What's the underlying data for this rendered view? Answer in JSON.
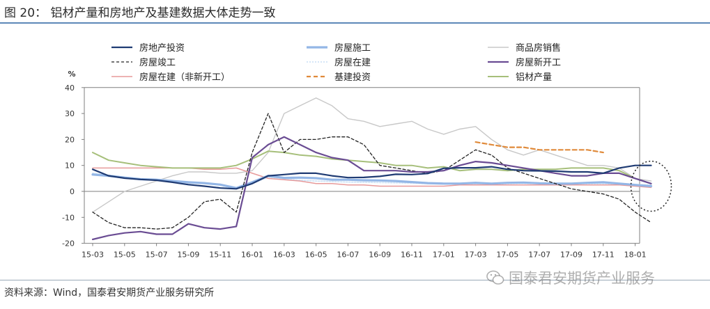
{
  "header": {
    "title": "图 20：  铝材产量和房地产及基建数据大体走势一致"
  },
  "footer": {
    "source": "资料来源：Wind，国泰君安期货产业服务研究所"
  },
  "watermark": {
    "text": "国泰君安期货产业服务",
    "icon": "wechat-icon"
  },
  "chart_data": {
    "type": "line",
    "ylabel": "%",
    "ylim": [
      -20,
      40
    ],
    "yticks": [
      -20,
      -10,
      0,
      10,
      20,
      30,
      40
    ],
    "x_tick_labels": [
      "15-03",
      "15-05",
      "15-07",
      "15-09",
      "15-11",
      "16-01",
      "16-03",
      "16-05",
      "16-07",
      "16-09",
      "16-11",
      "17-01",
      "17-03",
      "17-05",
      "17-07",
      "17-09",
      "17-11",
      "18-01"
    ],
    "x_months": [
      "15-03",
      "15-04",
      "15-05",
      "15-06",
      "15-07",
      "15-08",
      "15-09",
      "15-10",
      "15-11",
      "15-12",
      "16-01",
      "16-02",
      "16-03",
      "16-04",
      "16-05",
      "16-06",
      "16-07",
      "16-08",
      "16-09",
      "16-10",
      "16-11",
      "16-12",
      "17-01",
      "17-02",
      "17-03",
      "17-04",
      "17-05",
      "17-06",
      "17-07",
      "17-08",
      "17-09",
      "17-10",
      "17-11",
      "17-12",
      "18-01",
      "18-02"
    ],
    "grid": false,
    "legend_position": "top",
    "highlight": {
      "shape": "dashed-ellipse",
      "x": "18-02",
      "y": 2
    },
    "series": [
      {
        "name": "房地产投资",
        "color": "#1f3b73",
        "dash": "solid",
        "width": 2.2,
        "values": [
          8.5,
          6,
          5.1,
          4.6,
          4.3,
          3.5,
          2.6,
          2,
          1.3,
          1,
          3,
          6,
          6.5,
          7,
          7,
          6,
          5.3,
          5.4,
          5.8,
          6.6,
          6.5,
          6.9,
          8.9,
          9.1,
          9.1,
          9.5,
          8.5,
          8,
          7.9,
          7.8,
          7.5,
          7.5,
          7,
          9,
          10,
          10
        ]
      },
      {
        "name": "房屋施工",
        "color": "#93b6e6",
        "dash": "solid",
        "width": 3.2,
        "values": [
          6.5,
          6,
          5.3,
          4.7,
          4.5,
          4,
          3.5,
          3.2,
          2.6,
          1.3,
          3.5,
          6,
          5.2,
          5.3,
          5.1,
          4.5,
          4.5,
          4.3,
          4.2,
          4,
          3.6,
          3.2,
          3,
          3,
          3.3,
          3,
          3.3,
          3.4,
          3.1,
          3,
          3,
          3.3,
          3.5,
          3,
          2.5,
          2
        ]
      },
      {
        "name": "商品房销售",
        "color": "#c8c8c8",
        "dash": "solid",
        "width": 1.4,
        "values": [
          -8,
          -4,
          0,
          2,
          4,
          6,
          7.5,
          7.5,
          7,
          7,
          8,
          15,
          30,
          33,
          36,
          33,
          28,
          27,
          25,
          26,
          27,
          24,
          22,
          24,
          25,
          20,
          16,
          14,
          16,
          14,
          12,
          10,
          10,
          9,
          5,
          4
        ]
      },
      {
        "name": "房屋竣工",
        "color": "#222222",
        "dash": "4 3",
        "width": 1.3,
        "values": [
          -8,
          -12,
          -14,
          -14,
          -14.5,
          -14,
          -10,
          -4,
          -3,
          -8,
          15,
          30,
          15,
          20,
          20,
          21,
          21,
          18,
          10,
          9,
          8,
          7,
          8,
          12,
          16,
          14,
          9,
          7,
          5,
          3,
          1,
          0,
          -1,
          -3,
          -8,
          -12
        ]
      },
      {
        "name": "房屋在建",
        "color": "#cfe3f6",
        "dash": "2 2",
        "width": 1.8,
        "values": [
          7,
          6.2,
          5.5,
          4.8,
          4.2,
          3.5,
          2.8,
          2,
          1.5,
          1.2,
          3,
          5.5,
          4.8,
          4.3,
          4,
          3.8,
          3.6,
          3.5,
          3.4,
          3.3,
          3.2,
          3,
          2.9,
          2.8,
          2.8,
          2.8,
          3,
          3.1,
          3,
          2.9,
          2.9,
          3,
          3,
          2.8,
          2.6,
          2.4
        ]
      },
      {
        "name": "房屋新开工",
        "color": "#6a4c93",
        "dash": "solid",
        "width": 2.2,
        "values": [
          -18.5,
          -17,
          -16,
          -15.5,
          -16.5,
          -16.5,
          -12.5,
          -14,
          -14.5,
          -13.5,
          13,
          18,
          21,
          18,
          15,
          13,
          12,
          8,
          8,
          8,
          7.5,
          7.5,
          8,
          10,
          11.5,
          11,
          10,
          9,
          8,
          7,
          6,
          6,
          7,
          7,
          5,
          3
        ]
      },
      {
        "name": "房屋在建（非新开工）",
        "color": "#e79a9a",
        "dash": "solid",
        "width": 1.5,
        "values": [
          9,
          9,
          9,
          9,
          9,
          9,
          9,
          8.5,
          8.5,
          9,
          7,
          5,
          4.5,
          4,
          3,
          3,
          2.5,
          2.5,
          2,
          2,
          2,
          2,
          2,
          2.5,
          2.5,
          2.5,
          2.5,
          2.5,
          2.5,
          2.5,
          2.5,
          2.5,
          2.5,
          2.5,
          2,
          1.5
        ]
      },
      {
        "name": "基建投资",
        "color": "#e08a3a",
        "dash": "6 4",
        "width": 2.2,
        "values": [
          null,
          null,
          null,
          null,
          null,
          null,
          null,
          null,
          null,
          null,
          null,
          null,
          null,
          null,
          null,
          null,
          null,
          null,
          null,
          null,
          null,
          null,
          null,
          null,
          19,
          18,
          17,
          17,
          16,
          16,
          16,
          16,
          15,
          null,
          null,
          null
        ]
      },
      {
        "name": "铝材产量",
        "color": "#a6bf7a",
        "dash": "solid",
        "width": 2,
        "values": [
          15,
          12,
          11,
          10,
          9.5,
          9,
          9,
          9,
          9,
          10,
          12.5,
          15.5,
          15,
          14,
          13.5,
          12.5,
          12,
          11.5,
          11,
          10,
          10,
          9,
          9.5,
          8,
          8.5,
          8.5,
          8,
          8.5,
          8.5,
          8.5,
          9,
          9,
          9,
          8,
          5,
          3
        ]
      }
    ]
  }
}
